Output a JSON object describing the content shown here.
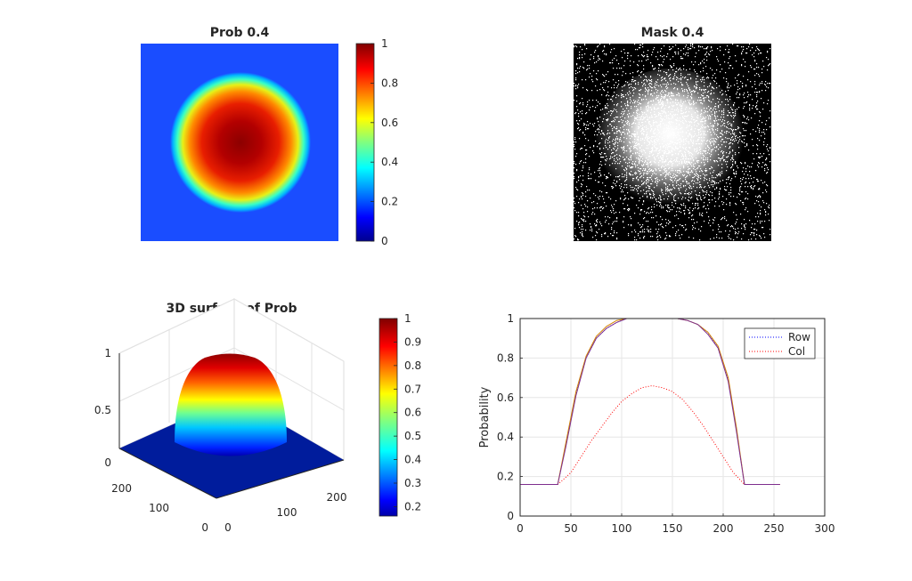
{
  "chart_data": [
    {
      "type": "heatmap",
      "title": "Prob 0.4",
      "colormap": "jet",
      "colorbar": {
        "ticks": [
          "0",
          "0.2",
          "0.4",
          "0.6",
          "0.8",
          "1"
        ],
        "clim": [
          0,
          1
        ]
      },
      "grid": false
    },
    {
      "type": "heatmap",
      "title": "Mask 0.4",
      "colormap": "gray-binary",
      "grid": false
    },
    {
      "type": "surface",
      "title": "3D surface of Prob",
      "colormap": "jet",
      "zticks": [
        "0",
        "0.5",
        "1"
      ],
      "xticks": [
        "0",
        "100",
        "200"
      ],
      "yticks": [
        "0",
        "100",
        "200"
      ],
      "colorbar": {
        "ticks": [
          "0.2",
          "0.3",
          "0.4",
          "0.5",
          "0.6",
          "0.7",
          "0.8",
          "0.9",
          "1"
        ],
        "clim": [
          0.16,
          1
        ]
      },
      "grid": true
    },
    {
      "type": "line",
      "title": "",
      "xlabel": "",
      "ylabel": "Probability",
      "xlim": [
        0,
        300
      ],
      "ylim": [
        0,
        1
      ],
      "xticks": [
        "0",
        "50",
        "100",
        "150",
        "200",
        "250",
        "300"
      ],
      "yticks": [
        "0",
        "0.2",
        "0.4",
        "0.6",
        "0.8",
        "1"
      ],
      "grid": true,
      "legend": "top-right",
      "series": [
        {
          "name": "Row",
          "color": "#0000ff",
          "style": "dotted",
          "x": [
            0,
            37,
            45,
            55,
            65,
            75,
            85,
            95,
            105,
            115,
            125,
            135,
            145,
            155,
            165,
            175,
            185,
            195,
            205,
            213,
            221,
            256
          ],
          "y": [
            0.16,
            0.16,
            0.36,
            0.62,
            0.8,
            0.9,
            0.95,
            0.98,
            1.0,
            1.0,
            1.0,
            1.0,
            1.0,
            1.0,
            0.99,
            0.97,
            0.93,
            0.85,
            0.69,
            0.44,
            0.16,
            0.16
          ]
        },
        {
          "name": "Col",
          "color": "#ff0000",
          "style": "dotted",
          "x": [
            0,
            37,
            50,
            60,
            70,
            80,
            90,
            100,
            110,
            120,
            130,
            140,
            150,
            160,
            170,
            180,
            190,
            200,
            210,
            221,
            256
          ],
          "y": [
            0.16,
            0.16,
            0.22,
            0.3,
            0.38,
            0.45,
            0.52,
            0.58,
            0.62,
            0.65,
            0.66,
            0.65,
            0.63,
            0.59,
            0.53,
            0.46,
            0.38,
            0.3,
            0.22,
            0.16,
            0.16
          ]
        },
        {
          "name": "",
          "color": "#d48600",
          "style": "solid",
          "x": [
            0,
            37,
            45,
            55,
            65,
            75,
            85,
            95,
            105,
            115,
            125,
            135,
            145,
            155,
            165,
            175,
            185,
            195,
            205,
            213,
            221,
            256
          ],
          "y": [
            0.16,
            0.16,
            0.37,
            0.63,
            0.81,
            0.91,
            0.96,
            0.99,
            1.0,
            1.0,
            1.0,
            1.0,
            1.0,
            1.0,
            0.99,
            0.97,
            0.93,
            0.86,
            0.7,
            0.45,
            0.16,
            0.16
          ]
        },
        {
          "name": "",
          "color": "#7e2f8e",
          "style": "solid",
          "x": [
            0,
            37,
            45,
            55,
            65,
            75,
            85,
            95,
            105,
            115,
            125,
            135,
            145,
            155,
            165,
            175,
            185,
            195,
            205,
            213,
            221,
            256
          ],
          "y": [
            0.16,
            0.16,
            0.35,
            0.61,
            0.8,
            0.9,
            0.95,
            0.98,
            1.0,
            1.0,
            1.0,
            1.0,
            1.0,
            1.0,
            0.99,
            0.97,
            0.92,
            0.85,
            0.68,
            0.43,
            0.16,
            0.16
          ]
        }
      ]
    }
  ]
}
